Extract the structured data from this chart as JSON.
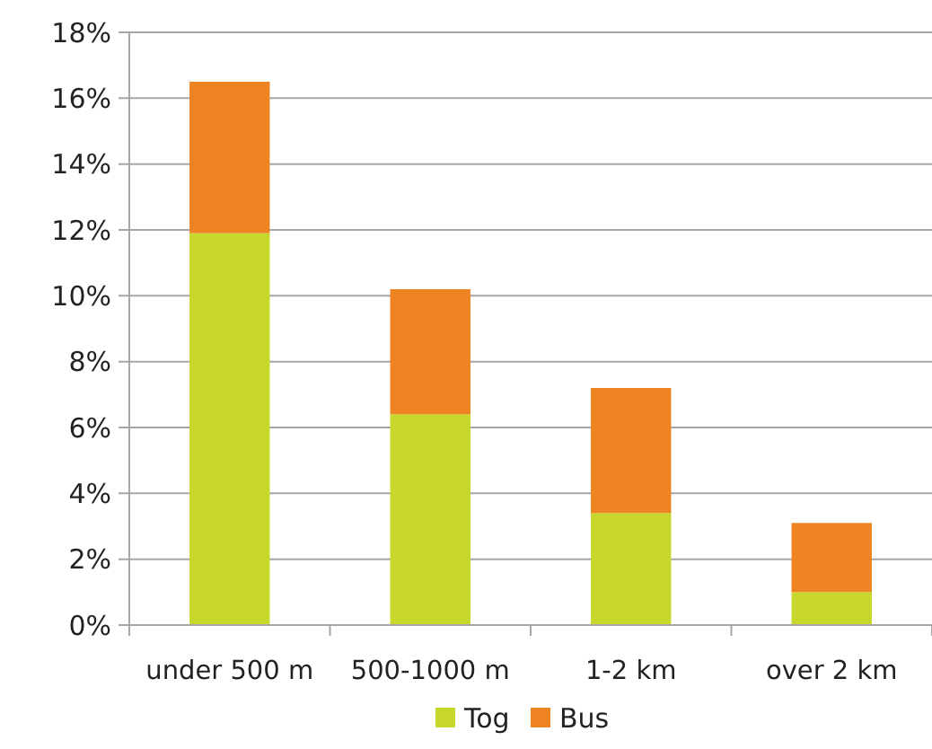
{
  "chart_data": {
    "type": "bar",
    "stacked": true,
    "categories": [
      "under 500 m",
      "500-1000 m",
      "1-2 km",
      "over 2 km"
    ],
    "series": [
      {
        "name": "Tog",
        "color": "#c8d72b",
        "values": [
          11.9,
          6.4,
          3.4,
          1.0
        ]
      },
      {
        "name": "Bus",
        "color": "#ee8322",
        "values": [
          4.6,
          3.8,
          3.8,
          2.1
        ]
      }
    ],
    "ylim": [
      0,
      18
    ],
    "yticks": [
      {
        "value": 0,
        "label": "0%"
      },
      {
        "value": 2,
        "label": "2%"
      },
      {
        "value": 4,
        "label": "4%"
      },
      {
        "value": 6,
        "label": "6%"
      },
      {
        "value": 8,
        "label": "8%"
      },
      {
        "value": 10,
        "label": "10%"
      },
      {
        "value": 12,
        "label": "12%"
      },
      {
        "value": 14,
        "label": "14%"
      },
      {
        "value": 16,
        "label": "16%"
      },
      {
        "value": 18,
        "label": "18%"
      }
    ],
    "grid": "y",
    "legend": "bottom"
  }
}
